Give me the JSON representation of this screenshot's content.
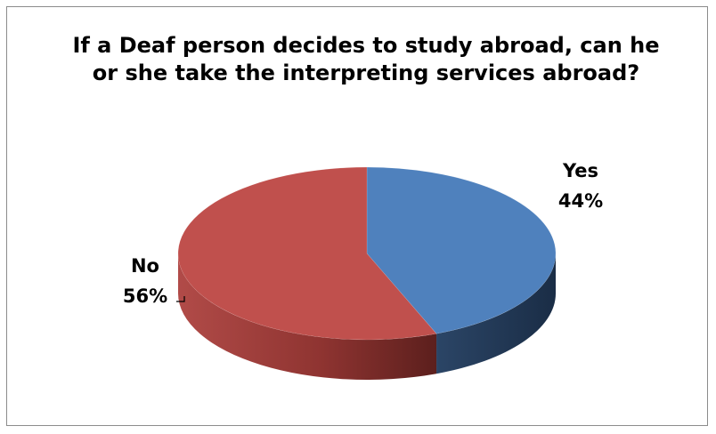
{
  "chart_data": {
    "type": "pie",
    "title": "If a Deaf person decides to study abroad, can he or she take the interpreting services abroad?",
    "categories": [
      "Yes",
      "No"
    ],
    "values": [
      44,
      56
    ],
    "value_labels": [
      "44%",
      "56%"
    ],
    "colors": [
      "#4f81bd",
      "#c0504d"
    ],
    "side_colors": [
      "#1f3756",
      "#8a2f2d"
    ],
    "style": "3d",
    "legend": "none"
  }
}
